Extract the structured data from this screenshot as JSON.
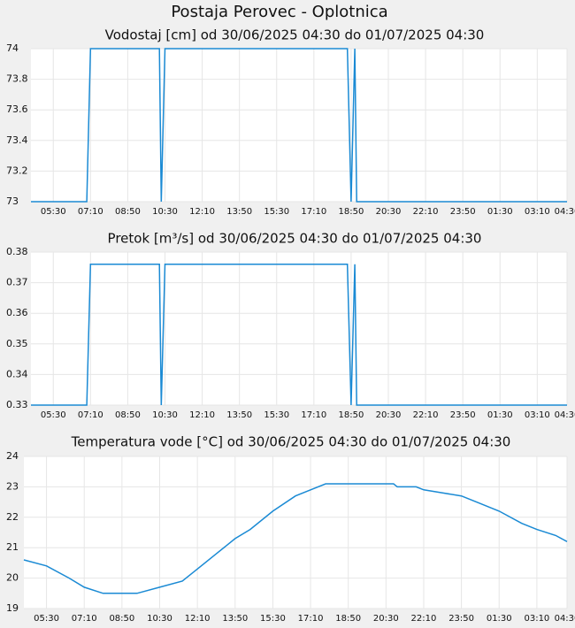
{
  "title": "Postaja Perovec - Oplotnica",
  "chart_data": [
    {
      "type": "line",
      "title": "Vodostaj [cm] od 30/06/2025 04:30 do 01/07/2025 04:30",
      "color": "#1a8ad4",
      "grid": true,
      "x": [
        "04:30",
        "07:00",
        "07:10",
        "10:15",
        "10:20",
        "10:30",
        "18:40",
        "18:50",
        "19:00",
        "19:05",
        "04:30"
      ],
      "values": [
        73,
        73,
        74,
        74,
        73,
        74,
        74,
        73,
        74,
        73,
        73
      ],
      "ylim": [
        73,
        74
      ],
      "yticks": [
        73,
        73.2,
        73.4,
        73.6,
        73.8,
        74
      ],
      "xlim": [
        "04:30",
        "04:30"
      ],
      "xticks": [
        "05:30",
        "07:10",
        "08:50",
        "10:30",
        "12:10",
        "13:50",
        "15:30",
        "17:10",
        "18:50",
        "20:30",
        "22:10",
        "23:50",
        "01:30",
        "03:10",
        "04:30"
      ]
    },
    {
      "type": "line",
      "title": "Pretok [m³/s] od 30/06/2025 04:30 do 01/07/2025 04:30",
      "color": "#1a8ad4",
      "grid": true,
      "x": [
        "04:30",
        "07:00",
        "07:10",
        "10:15",
        "10:20",
        "10:30",
        "18:40",
        "18:50",
        "19:00",
        "19:05",
        "04:30"
      ],
      "values": [
        0.33,
        0.33,
        0.376,
        0.376,
        0.33,
        0.376,
        0.376,
        0.33,
        0.376,
        0.33,
        0.33
      ],
      "ylim": [
        0.33,
        0.38
      ],
      "yticks": [
        0.33,
        0.34,
        0.35,
        0.36,
        0.37,
        0.38
      ],
      "xlim": [
        "04:30",
        "04:30"
      ],
      "xticks": [
        "05:30",
        "07:10",
        "08:50",
        "10:30",
        "12:10",
        "13:50",
        "15:30",
        "17:10",
        "18:50",
        "20:30",
        "22:10",
        "23:50",
        "01:30",
        "03:10",
        "04:30"
      ]
    },
    {
      "type": "line",
      "title": "Temperatura vode [°C] od 30/06/2025 04:30 do 01/07/2025 04:30",
      "color": "#1a8ad4",
      "grid": true,
      "x": [
        "04:30",
        "05:30",
        "06:30",
        "07:10",
        "08:00",
        "09:30",
        "10:30",
        "11:30",
        "12:10",
        "13:00",
        "13:50",
        "14:30",
        "15:30",
        "16:30",
        "17:10",
        "17:50",
        "20:50",
        "21:00",
        "21:50",
        "22:10",
        "23:00",
        "23:50",
        "00:30",
        "01:30",
        "02:30",
        "03:10",
        "04:00",
        "04:30"
      ],
      "values": [
        20.6,
        20.4,
        20.0,
        19.7,
        19.5,
        19.5,
        19.7,
        19.9,
        20.3,
        20.8,
        21.3,
        21.6,
        22.2,
        22.7,
        22.9,
        23.1,
        23.1,
        23.0,
        23.0,
        22.9,
        22.8,
        22.7,
        22.5,
        22.2,
        21.8,
        21.6,
        21.4,
        21.2
      ],
      "ylim": [
        19,
        24
      ],
      "yticks": [
        19,
        20,
        21,
        22,
        23,
        24
      ],
      "xlim": [
        "04:30",
        "04:30"
      ],
      "xticks": [
        "05:30",
        "07:10",
        "08:50",
        "10:30",
        "12:10",
        "13:50",
        "15:30",
        "17:10",
        "18:50",
        "20:30",
        "22:10",
        "23:50",
        "01:30",
        "03:10",
        "04:30"
      ]
    }
  ]
}
